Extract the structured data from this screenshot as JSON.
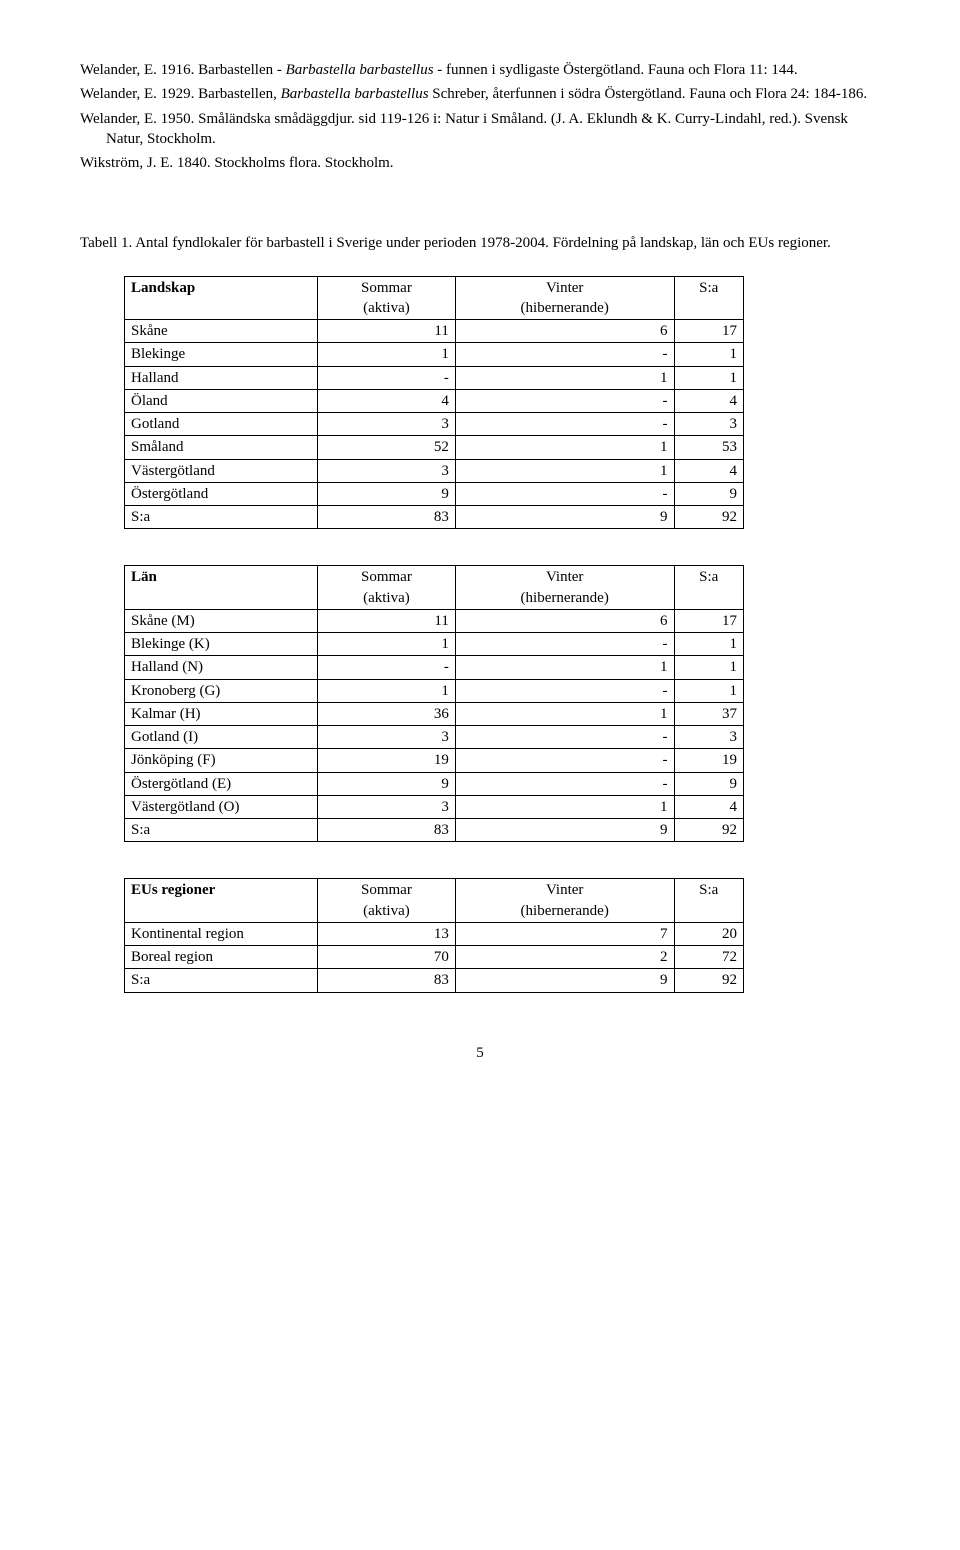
{
  "refs": [
    {
      "text": "Welander, E. 1916. Barbastellen - ",
      "em": "Barbastella barbastellus",
      "text2": " - funnen i sydligaste Östergötland. Fauna och Flora 11: 144."
    },
    {
      "text": "Welander, E. 1929. Barbastellen, ",
      "em": "Barbastella barbastellus",
      "text2": " Schreber, återfunnen i södra Östergötland. Fauna och Flora 24: 184-186."
    },
    {
      "text": "Welander, E. 1950. Småländska smådäggdjur. sid 119-126 i: Natur i Småland. (J. A. Eklundh & K. Curry-Lindahl, red.). Svensk Natur, Stockholm.",
      "em": "",
      "text2": ""
    },
    {
      "text": "Wikström, J. E. 1840. Stockholms flora. Stockholm.",
      "em": "",
      "text2": ""
    }
  ],
  "tableTitle": "Tabell 1. Antal fyndlokaler för barbastell i Sverige under perioden 1978-2004. Fördelning på landskap, län och EUs regioner.",
  "headers": {
    "landskap": "Landskap",
    "lan": "Län",
    "eu": "EUs regioner",
    "sommar": "Sommar",
    "aktiva": "(aktiva)",
    "vinter": "Vinter",
    "hiber": "(hibernerande)",
    "sa": "S:a"
  },
  "t1": [
    [
      "Skåne",
      "11",
      "6",
      "17"
    ],
    [
      "Blekinge",
      "1",
      "-",
      "1"
    ],
    [
      "Halland",
      "-",
      "1",
      "1"
    ],
    [
      "Öland",
      "4",
      "-",
      "4"
    ],
    [
      "Gotland",
      "3",
      "-",
      "3"
    ],
    [
      "Småland",
      "52",
      "1",
      "53"
    ],
    [
      "Västergötland",
      "3",
      "1",
      "4"
    ],
    [
      "Östergötland",
      "9",
      "-",
      "9"
    ],
    [
      "S:a",
      "83",
      "9",
      "92"
    ]
  ],
  "t2": [
    [
      "Skåne (M)",
      "11",
      "6",
      "17"
    ],
    [
      "Blekinge (K)",
      "1",
      "-",
      "1"
    ],
    [
      "Halland (N)",
      "-",
      "1",
      "1"
    ],
    [
      "Kronoberg (G)",
      "1",
      "-",
      "1"
    ],
    [
      "Kalmar (H)",
      "36",
      "1",
      "37"
    ],
    [
      "Gotland (I)",
      "3",
      "-",
      "3"
    ],
    [
      "Jönköping (F)",
      "19",
      "-",
      "19"
    ],
    [
      "Östergötland (E)",
      "9",
      "-",
      "9"
    ],
    [
      "Västergötland (O)",
      "3",
      "1",
      "4"
    ],
    [
      "S:a",
      "83",
      "9",
      "92"
    ]
  ],
  "t3": [
    [
      "Kontinental region",
      "13",
      "7",
      "20"
    ],
    [
      "Boreal region",
      "70",
      "2",
      "72"
    ],
    [
      "S:a",
      "83",
      "9",
      "92"
    ]
  ],
  "pageNumber": "5"
}
